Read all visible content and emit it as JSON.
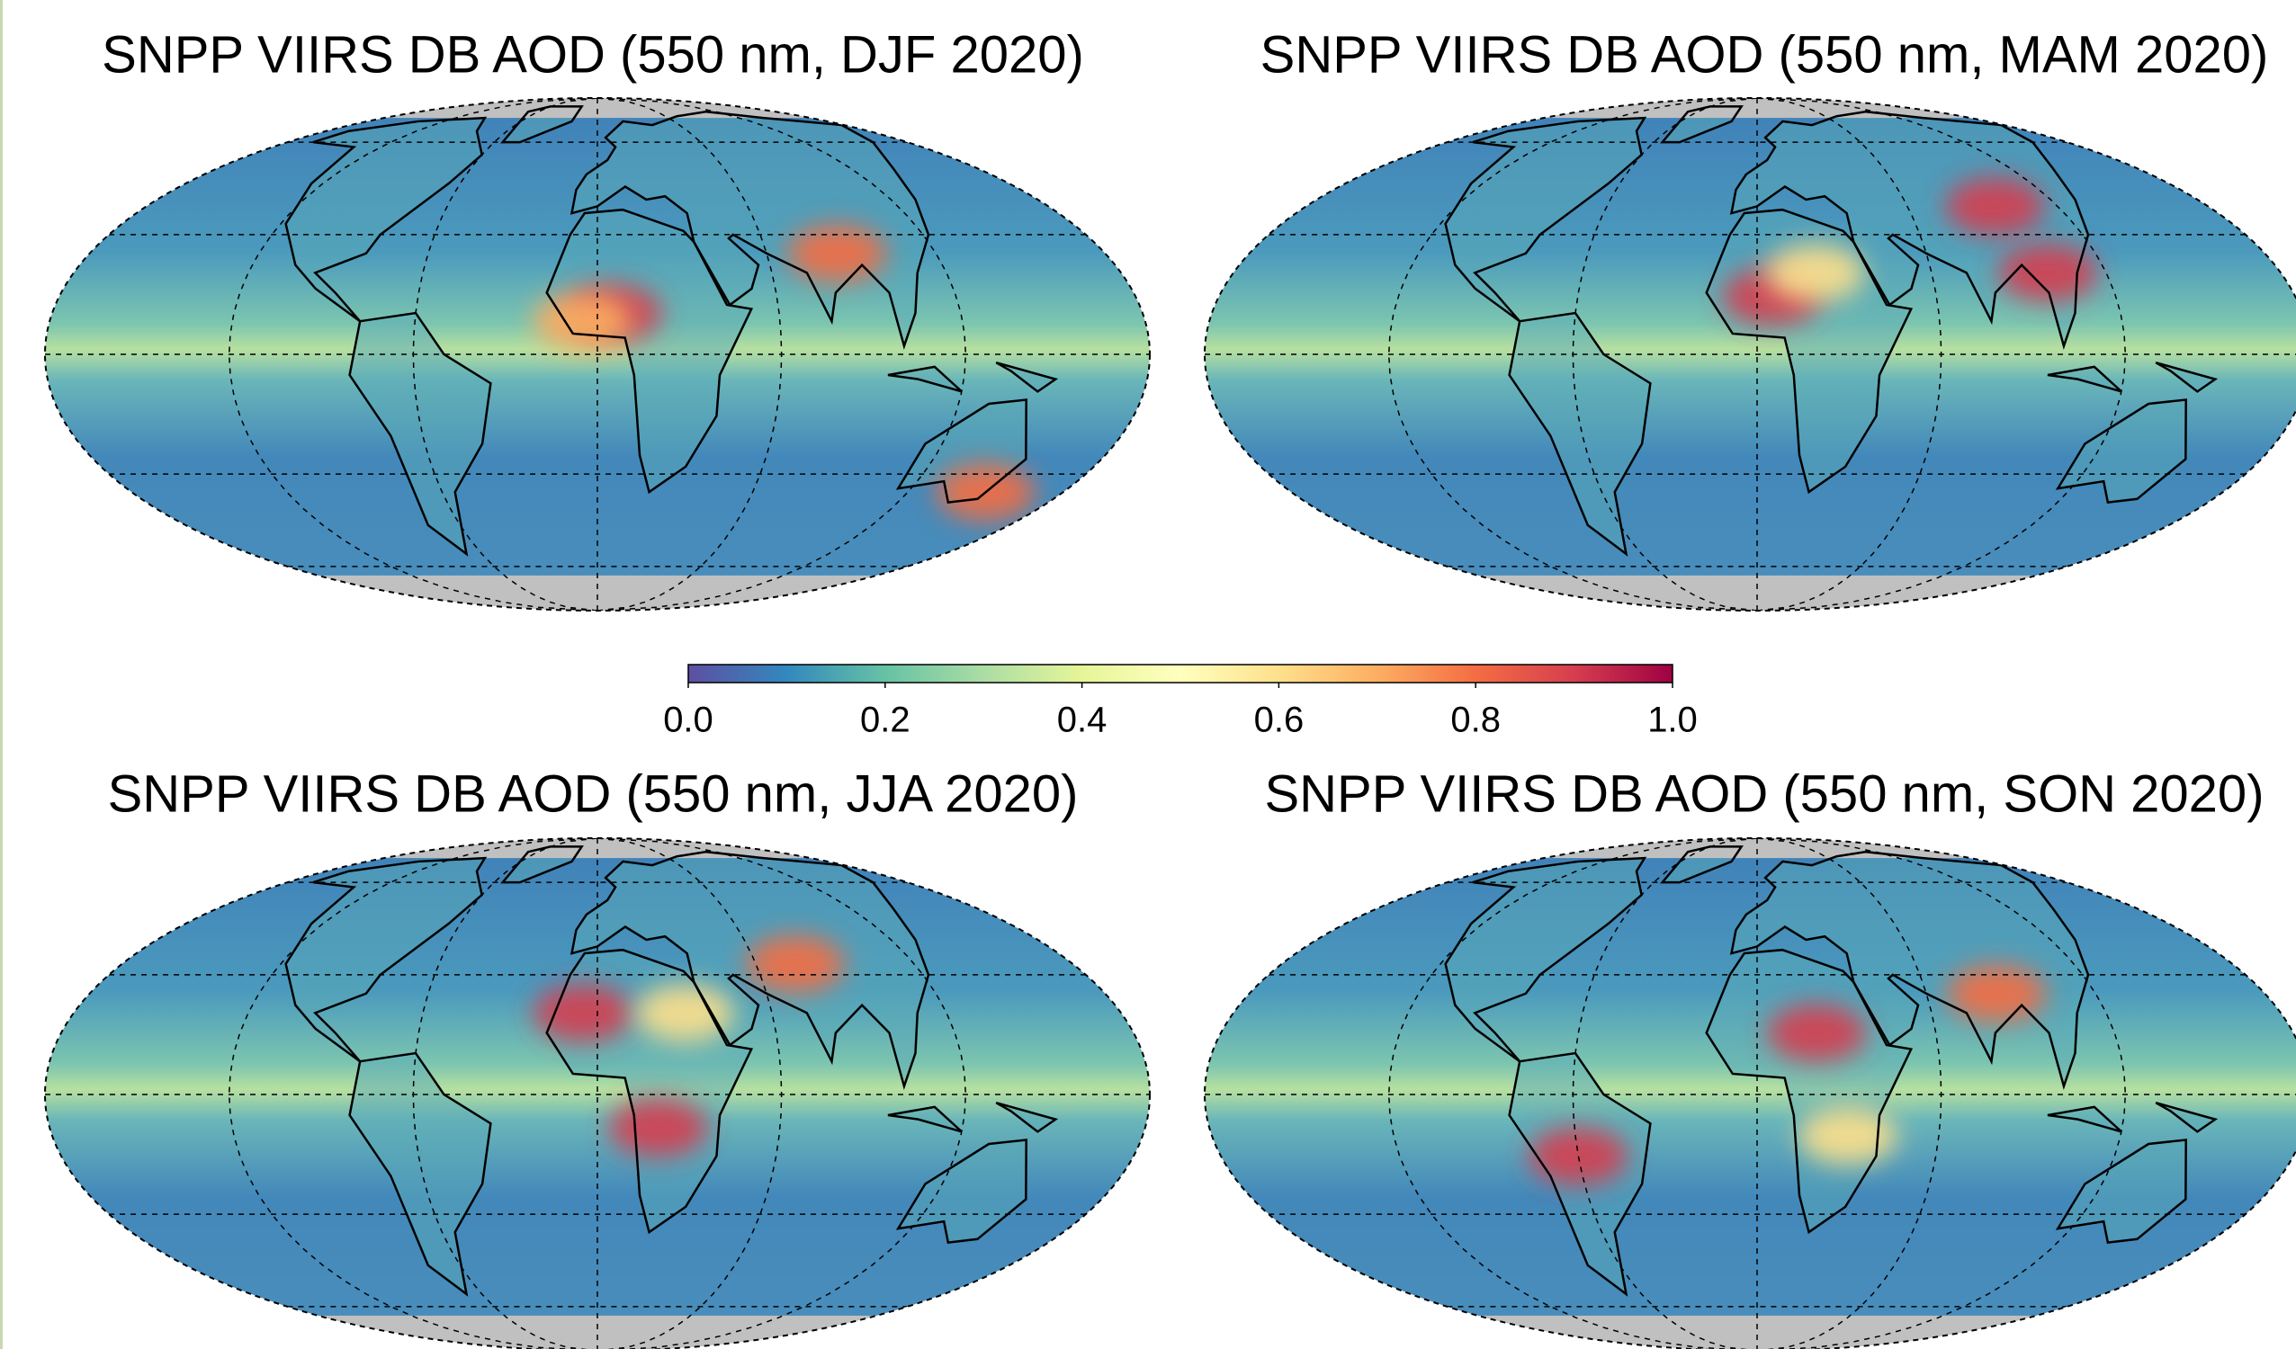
{
  "panels": [
    {
      "title": "SNPP VIIRS DB AOD (550 nm, DJF 2020)"
    },
    {
      "title": "SNPP VIIRS DB AOD (550 nm, MAM 2020)"
    },
    {
      "title": "SNPP VIIRS DB AOD (550 nm, JJA 2020)"
    },
    {
      "title": "SNPP VIIRS DB AOD (550 nm, SON 2020)"
    }
  ],
  "colorbar": {
    "lim": [
      0,
      1
    ],
    "ticks": [
      {
        "value": 0,
        "label": "0.0"
      },
      0.2,
      0.4,
      0.6,
      0.8,
      {
        "value": 1,
        "label": "1.0"
      }
    ],
    "colors": [
      "#5e4fa2",
      "#3288bd",
      "#66c2a5",
      "#abdda4",
      "#e6f598",
      "#ffffbf",
      "#fee08b",
      "#fdae61",
      "#f46d43",
      "#d53e4f",
      "#9e0142"
    ]
  }
}
